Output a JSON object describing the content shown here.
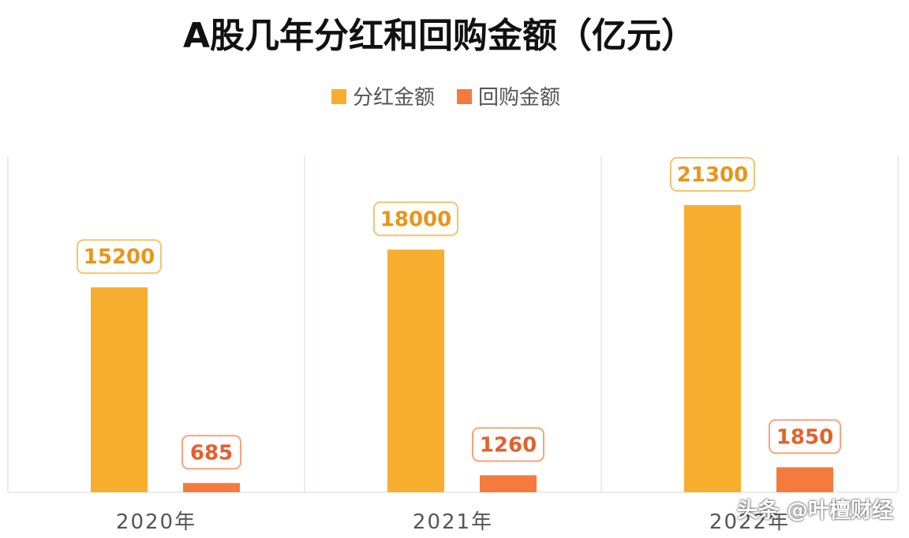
{
  "chart_data": {
    "type": "bar",
    "title": "A股几年分红和回购金额（亿元）",
    "categories": [
      "2020年",
      "2021年",
      "2022年"
    ],
    "series": [
      {
        "name": "分红金额",
        "values": [
          15200,
          18000,
          21300
        ]
      },
      {
        "name": "回购金额",
        "values": [
          685,
          1260,
          1850
        ]
      }
    ],
    "ylim": [
      0,
      25000
    ],
    "grid": false,
    "legend_position": "top-center",
    "colors": {
      "dividend": "#F7AE2E",
      "buyback": "#F57A3E",
      "dividend_label_border": "#F5C46C",
      "buyback_label_border": "#F5A37C"
    }
  },
  "watermark": "头条 @叶檀财经"
}
